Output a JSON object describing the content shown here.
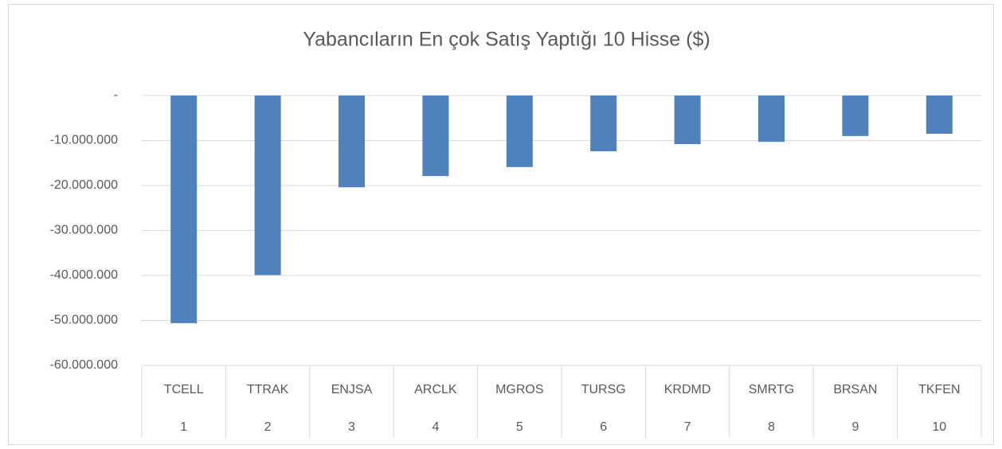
{
  "chart_data": {
    "type": "bar",
    "title": "Yabancıların En çok Satış Yaptığı 10 Hisse ($)",
    "categories": [
      "TCELL",
      "TTRAK",
      "ENJSA",
      "ARCLK",
      "MGROS",
      "TURSG",
      "KRDMD",
      "SMRTG",
      "BRSAN",
      "TKFEN"
    ],
    "ranks": [
      "1",
      "2",
      "3",
      "4",
      "5",
      "6",
      "7",
      "8",
      "9",
      "10"
    ],
    "values": [
      -50600000,
      -39900000,
      -20400000,
      -17900000,
      -15900000,
      -12400000,
      -10800000,
      -10300000,
      -9000000,
      -8500000
    ],
    "color": "#4f81bd",
    "ylim": [
      -60000000,
      0
    ],
    "yticks": [
      {
        "value": 0,
        "label": "-"
      },
      {
        "value": -10000000,
        "label": "-10.000.000"
      },
      {
        "value": -20000000,
        "label": "-20.000.000"
      },
      {
        "value": -30000000,
        "label": "-30.000.000"
      },
      {
        "value": -40000000,
        "label": "-40.000.000"
      },
      {
        "value": -50000000,
        "label": "-50.000.000"
      },
      {
        "value": -60000000,
        "label": "-60.000.000"
      }
    ],
    "grid": true
  }
}
